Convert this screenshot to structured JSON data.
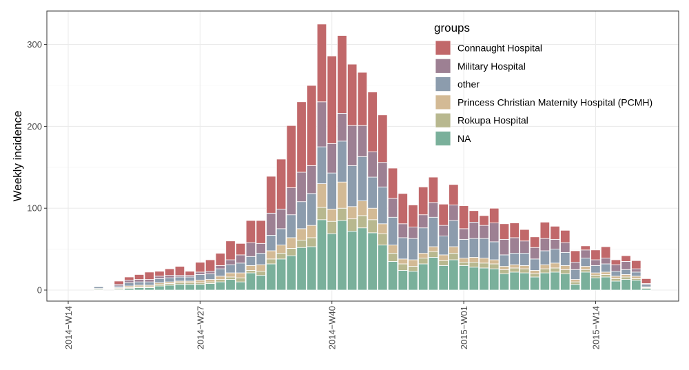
{
  "chart_data": {
    "type": "bar",
    "stacked": true,
    "ylabel": "Weekly incidence",
    "xlabel": "",
    "ylim": [
      0,
      340
    ],
    "y_ticks": [
      0,
      100,
      200,
      300
    ],
    "x_tick_labels": [
      {
        "label": "2014−W14",
        "week_index": 0
      },
      {
        "label": "2014−W27",
        "week_index": 13
      },
      {
        "label": "2014−W40",
        "week_index": 26
      },
      {
        "label": "2015−W01",
        "week_index": 39
      },
      {
        "label": "2015−W14",
        "week_index": 52
      }
    ],
    "weeks_first_index": 1,
    "grid": true,
    "legend": {
      "title": "groups",
      "position": "top-right",
      "entries": [
        {
          "name": "Connaught Hospital",
          "color": "#c1686a"
        },
        {
          "name": "Military Hospital",
          "color": "#9d8093"
        },
        {
          "name": "other",
          "color": "#8c9cad"
        },
        {
          "name": "Princess Christian Maternity Hospital (PCMH)",
          "color": "#d3ba95"
        },
        {
          "name": "Rokupa Hospital",
          "color": "#b8b88f"
        },
        {
          "name": "NA",
          "color": "#7ab09b"
        }
      ]
    },
    "stack_order_bottom_to_top": [
      "NA",
      "Rokupa Hospital",
      "Princess Christian Maternity Hospital (PCMH)",
      "other",
      "Military Hospital",
      "Connaught Hospital"
    ],
    "series": [
      {
        "name": "NA",
        "values": [
          0,
          0,
          1,
          0,
          1,
          2,
          3,
          3,
          5,
          6,
          7,
          7,
          7,
          8,
          10,
          13,
          10,
          21,
          18,
          32,
          38,
          42,
          52,
          53,
          86,
          69,
          85,
          72,
          76,
          70,
          55,
          35,
          24,
          23,
          32,
          40,
          30,
          37,
          30,
          28,
          27,
          26,
          20,
          22,
          21,
          16,
          21,
          22,
          20,
          7,
          22,
          15,
          16,
          11,
          13,
          12,
          2
        ]
      },
      {
        "name": "Rokupa Hospital",
        "values": [
          0,
          0,
          0,
          0,
          1,
          1,
          1,
          1,
          2,
          2,
          2,
          2,
          2,
          2,
          3,
          3,
          5,
          3,
          5,
          6,
          7,
          9,
          9,
          11,
          15,
          15,
          15,
          15,
          15,
          16,
          14,
          10,
          8,
          6,
          7,
          7,
          6,
          8,
          4,
          6,
          6,
          6,
          5,
          5,
          5,
          4,
          5,
          5,
          5,
          3,
          3,
          3,
          3,
          3,
          3,
          2,
          1
        ]
      },
      {
        "name": "Princess Christian Maternity Hospital (PCMH)",
        "values": [
          0,
          0,
          1,
          0,
          1,
          2,
          2,
          2,
          2,
          2,
          2,
          2,
          3,
          3,
          4,
          5,
          6,
          6,
          8,
          10,
          10,
          13,
          14,
          15,
          29,
          15,
          32,
          15,
          18,
          14,
          12,
          10,
          6,
          8,
          6,
          6,
          7,
          8,
          5,
          6,
          6,
          5,
          4,
          4,
          4,
          4,
          5,
          6,
          5,
          3,
          4,
          3,
          3,
          3,
          3,
          3,
          1
        ]
      },
      {
        "name": "other",
        "values": [
          0,
          0,
          2,
          0,
          2,
          4,
          4,
          4,
          5,
          5,
          5,
          5,
          7,
          7,
          9,
          10,
          12,
          11,
          14,
          19,
          20,
          28,
          33,
          39,
          45,
          44,
          50,
          50,
          54,
          38,
          45,
          34,
          26,
          26,
          31,
          36,
          23,
          32,
          23,
          23,
          24,
          22,
          14,
          14,
          15,
          14,
          17,
          17,
          16,
          12,
          10,
          9,
          10,
          6,
          6,
          5,
          3
        ]
      },
      {
        "name": "Military Hospital",
        "values": [
          0,
          0,
          0,
          0,
          2,
          3,
          3,
          3,
          3,
          3,
          2,
          2,
          3,
          3,
          4,
          6,
          10,
          17,
          12,
          27,
          24,
          33,
          36,
          34,
          55,
          36,
          34,
          49,
          38,
          31,
          30,
          23,
          17,
          14,
          16,
          18,
          13,
          19,
          13,
          20,
          16,
          23,
          19,
          19,
          15,
          14,
          15,
          12,
          12,
          9,
          10,
          7,
          7,
          8,
          10,
          4,
          1
        ]
      },
      {
        "name": "Connaught Hospital",
        "values": [
          0,
          0,
          0,
          0,
          4,
          4,
          6,
          9,
          6,
          8,
          11,
          5,
          12,
          14,
          15,
          23,
          14,
          27,
          28,
          45,
          61,
          76,
          86,
          98,
          95,
          107,
          95,
          75,
          65,
          73,
          58,
          37,
          37,
          27,
          34,
          31,
          26,
          25,
          28,
          14,
          12,
          18,
          19,
          18,
          14,
          13,
          20,
          16,
          15,
          14,
          5,
          12,
          14,
          6,
          7,
          10,
          6
        ]
      }
    ]
  }
}
